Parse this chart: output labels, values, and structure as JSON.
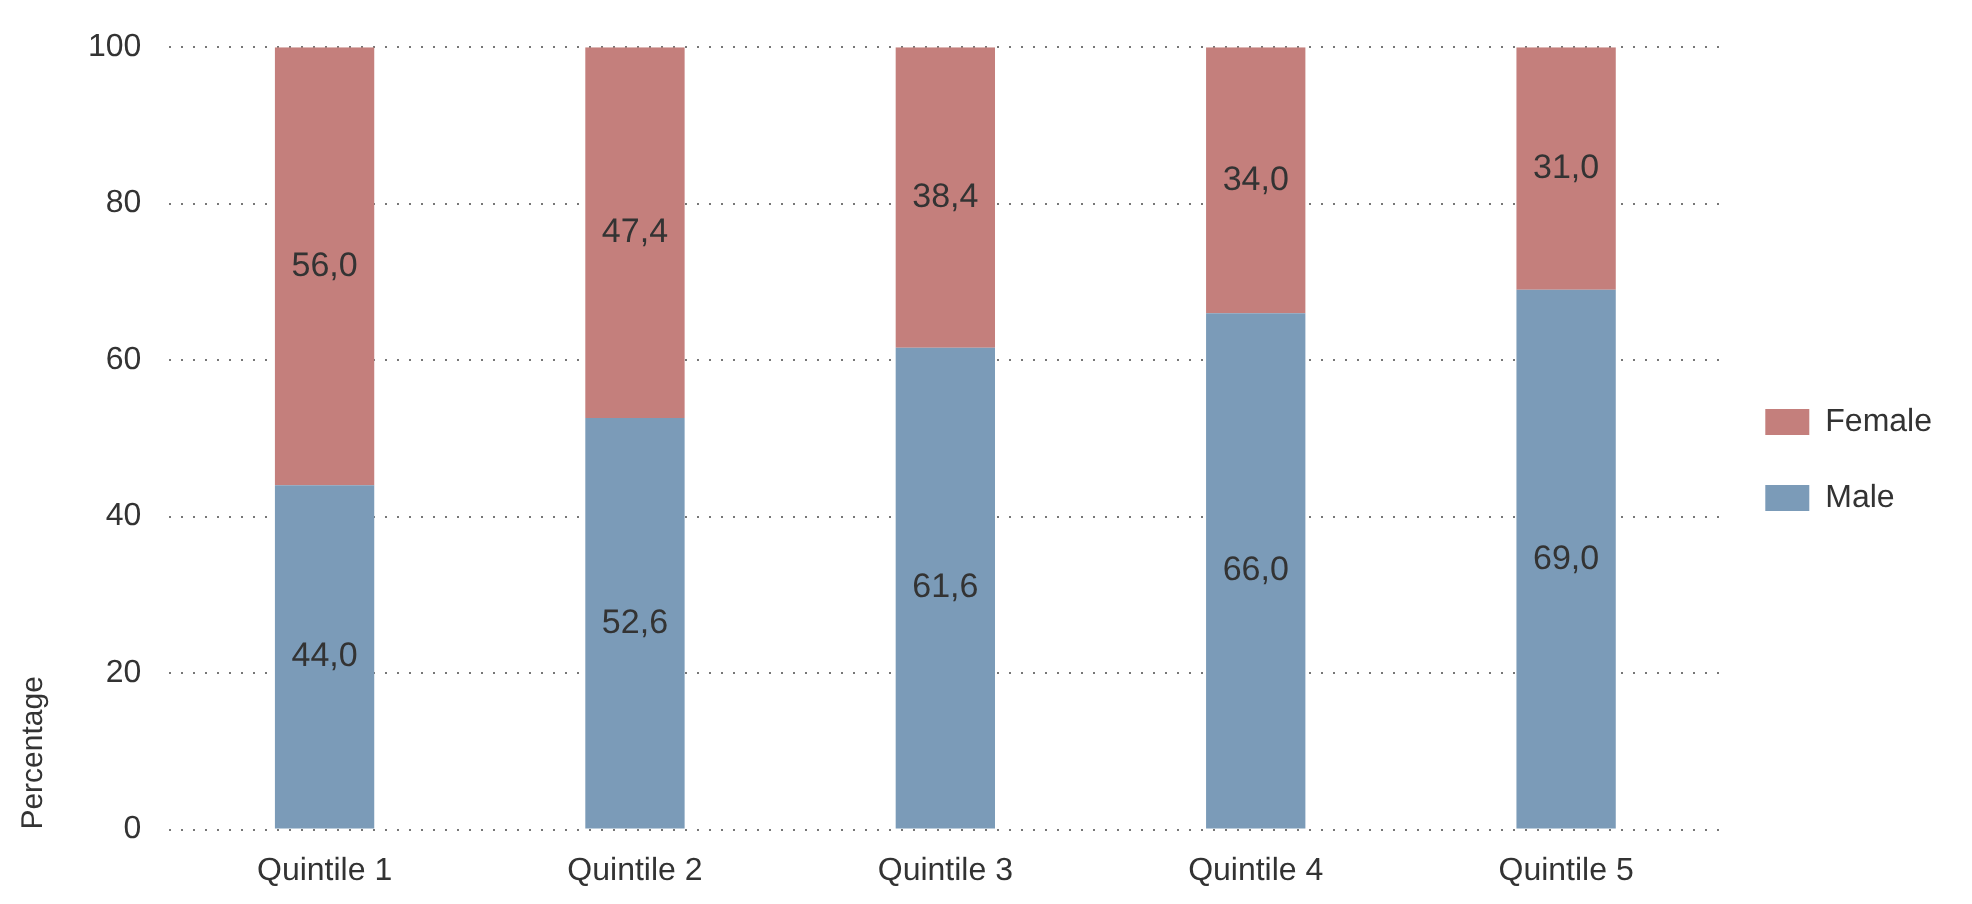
{
  "chart_data": {
    "type": "bar",
    "stacked": true,
    "ylabel": "Percentage",
    "categories": [
      "Quintile 1",
      "Quintile 2",
      "Quintile 3",
      "Quintile 4",
      "Quintile 5"
    ],
    "series": [
      {
        "name": "Male",
        "color": "#7b9bb8",
        "values": [
          44.0,
          52.6,
          61.6,
          66.0,
          69.0
        ],
        "value_labels": [
          "44,0",
          "52,6",
          "61,6",
          "66,0",
          "69,0"
        ]
      },
      {
        "name": "Female",
        "color": "#c47f7c",
        "values": [
          56.0,
          47.4,
          38.4,
          34.0,
          31.0
        ],
        "value_labels": [
          "56,0",
          "47,4",
          "38,4",
          "34,0",
          "31,0"
        ]
      }
    ],
    "ylim": [
      0,
      100
    ],
    "yticks": [
      0,
      20,
      40,
      60,
      80,
      100
    ],
    "grid": "y",
    "legend": "right"
  }
}
